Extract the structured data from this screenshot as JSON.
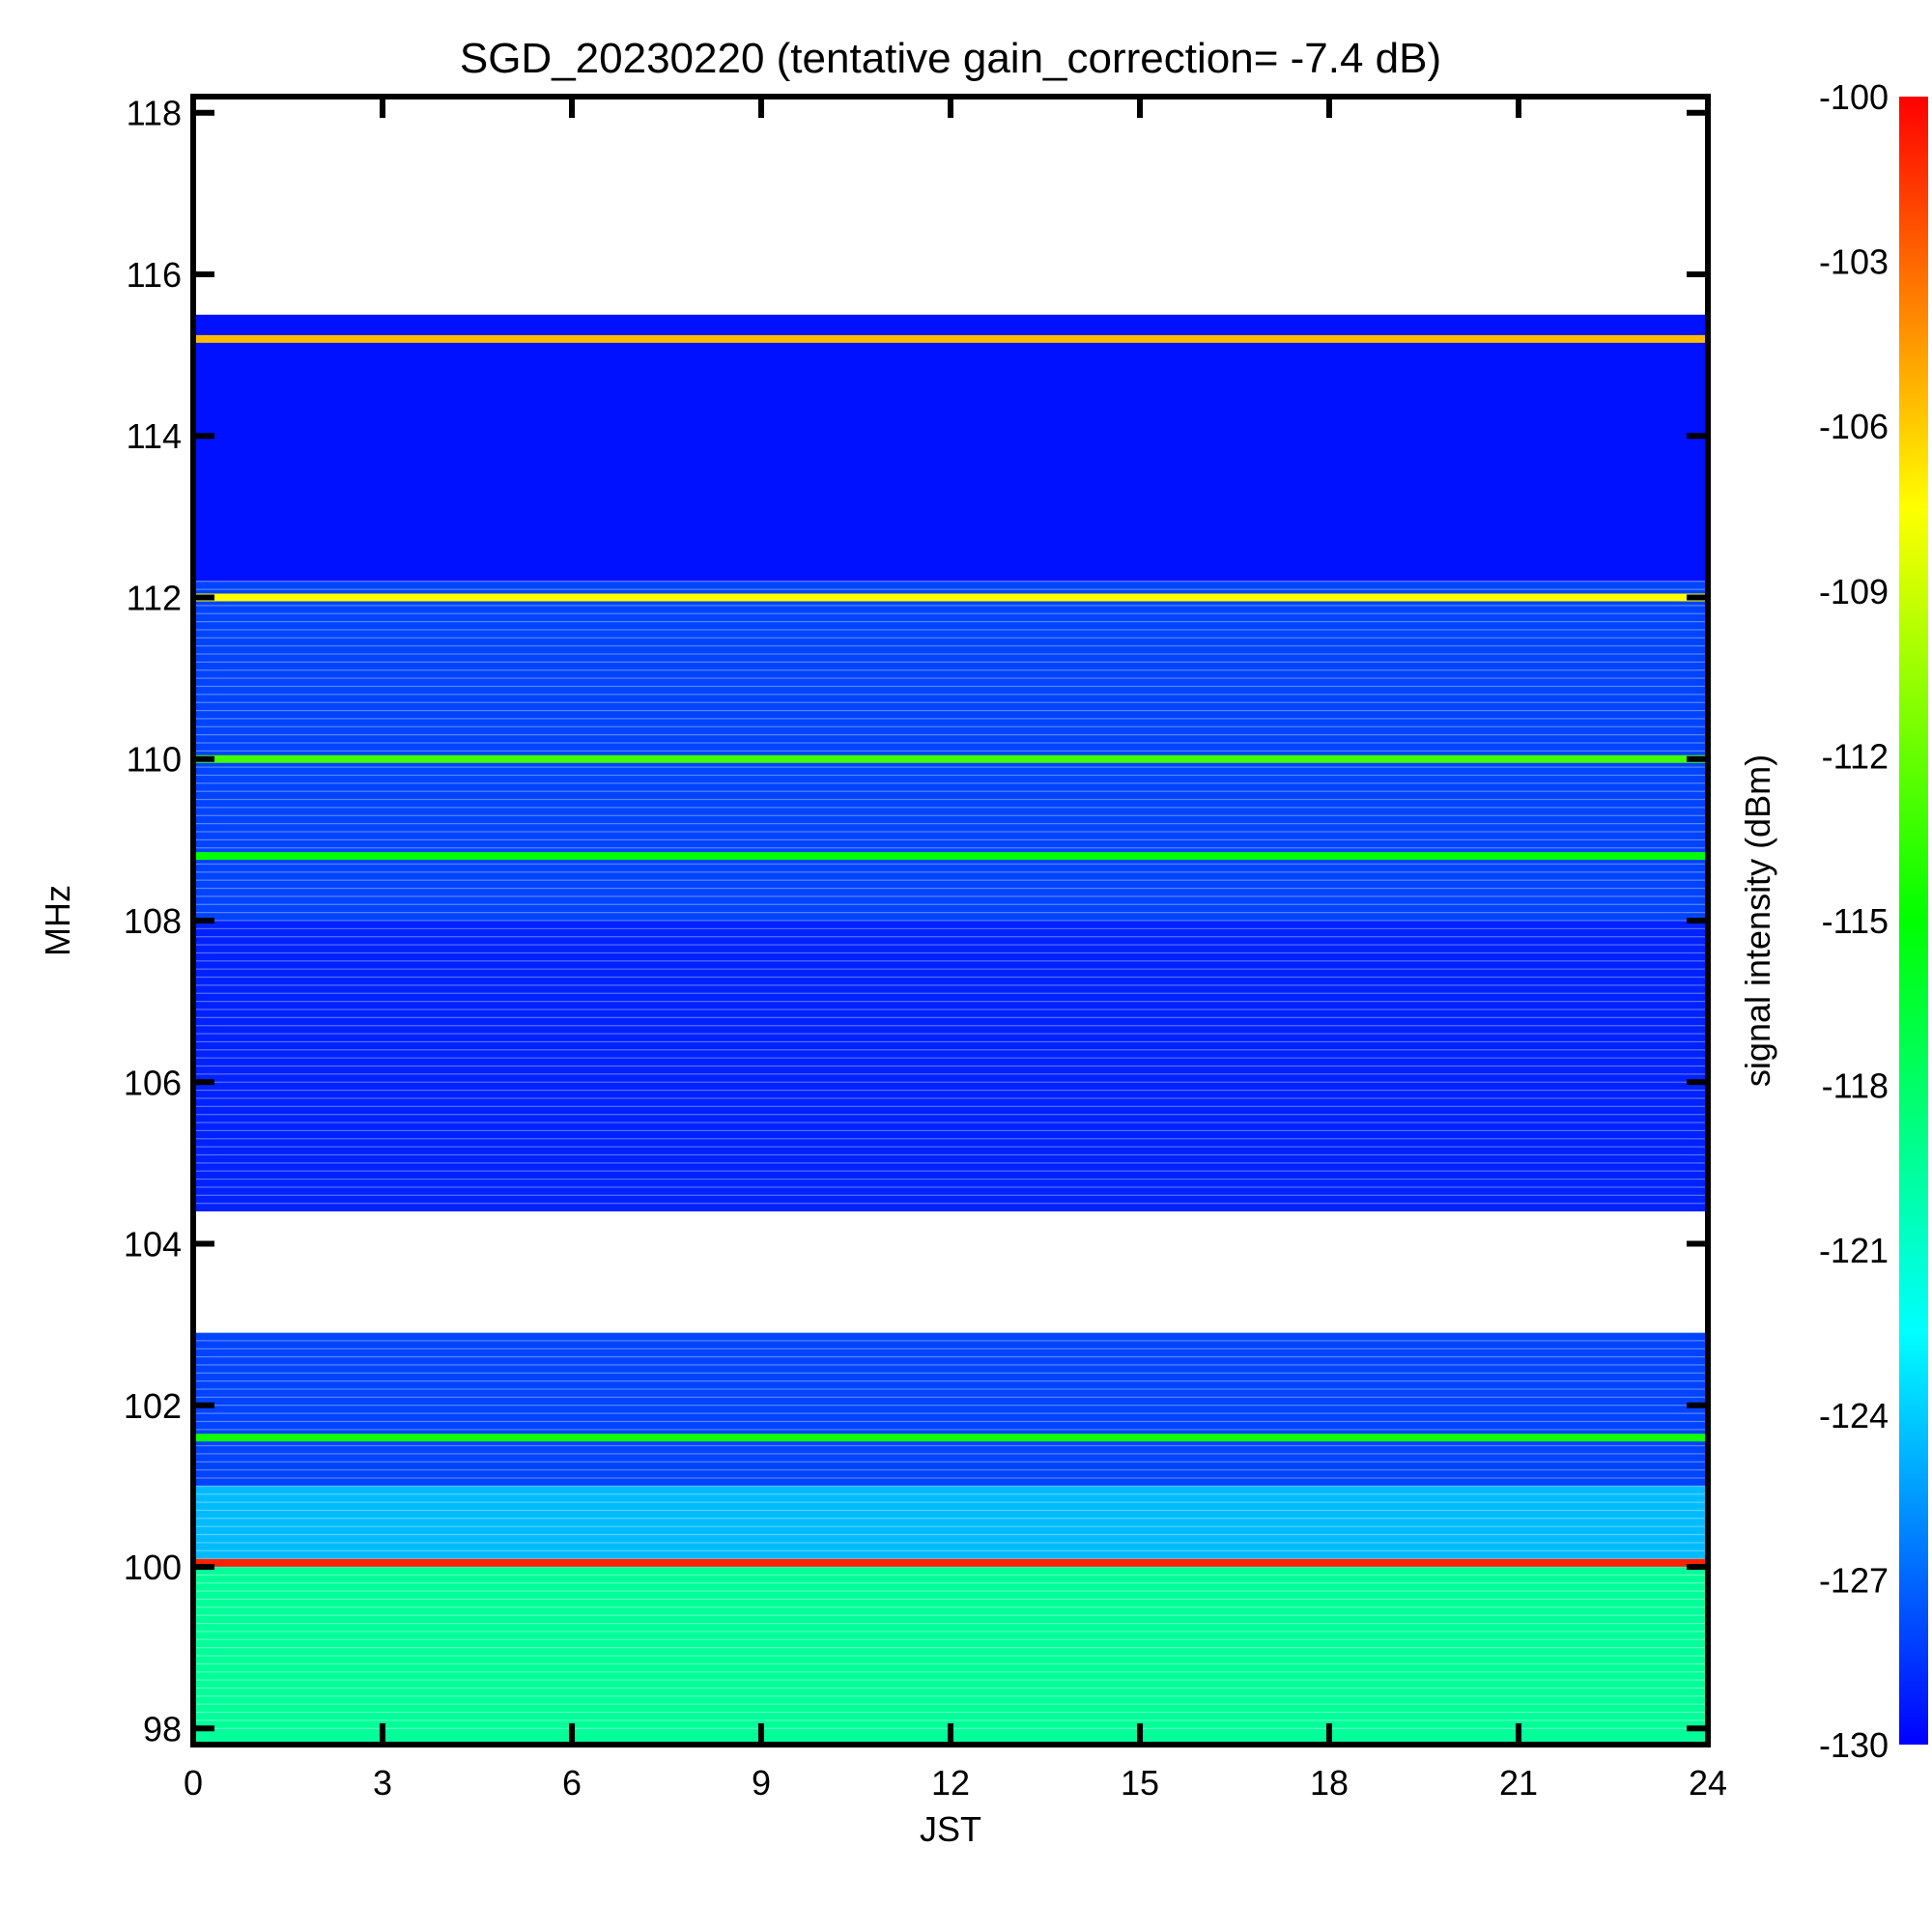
{
  "chart_data": {
    "type": "heatmap",
    "title": "SGD_20230220 (tentative gain_correction= -7.4 dB)",
    "xlabel": "JST",
    "ylabel": "MHz",
    "colorbar_label": "signal intensity (dBm)",
    "xlim": [
      0,
      24
    ],
    "ylim": [
      97.8,
      118.2
    ],
    "color_range": [
      -130,
      -100
    ],
    "x_ticks": [
      "0",
      "3",
      "6",
      "9",
      "12",
      "15",
      "18",
      "21",
      "24"
    ],
    "x_tick_values": [
      0,
      3,
      6,
      9,
      12,
      15,
      18,
      21,
      24
    ],
    "y_ticks": [
      "98",
      "100",
      "102",
      "104",
      "106",
      "108",
      "110",
      "112",
      "114",
      "116",
      "118"
    ],
    "y_tick_values": [
      98,
      100,
      102,
      104,
      106,
      108,
      110,
      112,
      114,
      116,
      118
    ],
    "colorbar_ticks": [
      "-100",
      "-103",
      "-106",
      "-109",
      "-112",
      "-115",
      "-118",
      "-121",
      "-124",
      "-127",
      "-130"
    ],
    "colorbar_tick_values": [
      -100,
      -103,
      -106,
      -109,
      -112,
      -115,
      -118,
      -121,
      -124,
      -127,
      -130
    ],
    "colormap": [
      "#0000ff",
      "#0080ff",
      "#00ffff",
      "#00ff80",
      "#00ff00",
      "#80ff00",
      "#ffff00",
      "#ff8000",
      "#ff0000"
    ],
    "strong_lines": [
      {
        "mhz": 115.2,
        "dbm": -105.5
      },
      {
        "mhz": 112.0,
        "dbm": -107.5
      },
      {
        "mhz": 110.0,
        "dbm": -113.0
      },
      {
        "mhz": 108.8,
        "dbm": -115.0
      },
      {
        "mhz": 101.6,
        "dbm": -114.5
      },
      {
        "mhz": 100.05,
        "dbm": -101.0
      }
    ],
    "bands": [
      {
        "from": 97.8,
        "to": 100.0,
        "dbm": -119.5
      },
      {
        "from": 100.0,
        "to": 101.0,
        "dbm": -124.5
      },
      {
        "from": 101.0,
        "to": 102.9,
        "dbm": -128.0
      },
      {
        "from": 102.9,
        "to": 104.4,
        "dbm": null
      },
      {
        "from": 104.4,
        "to": 108.0,
        "dbm": -129.0
      },
      {
        "from": 108.0,
        "to": 112.2,
        "dbm": -128.0
      },
      {
        "from": 112.2,
        "to": 115.5,
        "dbm": -129.5
      },
      {
        "from": 115.5,
        "to": 118.2,
        "dbm": null
      }
    ]
  }
}
